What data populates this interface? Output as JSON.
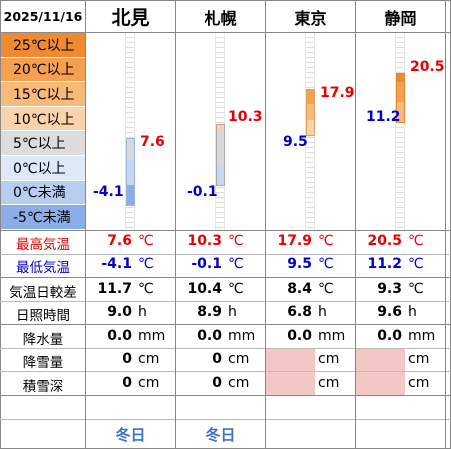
{
  "date": "2025/11/16",
  "legend": [
    "25℃以上",
    "20℃以上",
    "15℃以上",
    "10℃以上",
    "5℃以上",
    "0℃以上",
    "0℃未満",
    "-5℃未満"
  ],
  "legend_colors": [
    "#f08a30",
    "#f5a050",
    "#f7ba78",
    "#fad3ad",
    "#dcdcdc",
    "#dde9f7",
    "#b6cff0",
    "#8aaee6"
  ],
  "colors": {
    "high": "#e60000",
    "low": "#0000cc",
    "blue_label": "#3a72c8"
  },
  "row_labels": {
    "max_temp": "最高気温",
    "min_temp": "最低気温",
    "temp_range": "気温日較差",
    "sunshine": "日照時間",
    "precip": "降水量",
    "snowfall": "降雪量",
    "snow_depth": "積雪深"
  },
  "cities": [
    {
      "name": "北見",
      "max": "7.6",
      "min": "-4.1",
      "range": "11.7",
      "sun": "9.0",
      "precip": "0.0",
      "snowfall": "0",
      "snow_depth": "0",
      "note": "冬日",
      "snow_na": false
    },
    {
      "name": "札幌",
      "max": "10.3",
      "min": "-0.1",
      "range": "10.4",
      "sun": "8.9",
      "precip": "0.0",
      "snowfall": "0",
      "snow_depth": "0",
      "note": "冬日",
      "snow_na": false
    },
    {
      "name": "東京",
      "max": "17.9",
      "min": "9.5",
      "range": "8.4",
      "sun": "6.8",
      "precip": "0.0",
      "snowfall": "",
      "snow_depth": "",
      "note": "",
      "snow_na": true
    },
    {
      "name": "静岡",
      "max": "20.5",
      "min": "11.2",
      "range": "9.3",
      "sun": "9.6",
      "precip": "0.0",
      "snowfall": "",
      "snow_depth": "",
      "note": "",
      "snow_na": true
    }
  ],
  "units": {
    "temp": "℃",
    "hours": "h",
    "mm": "mm",
    "cm": "cm"
  }
}
